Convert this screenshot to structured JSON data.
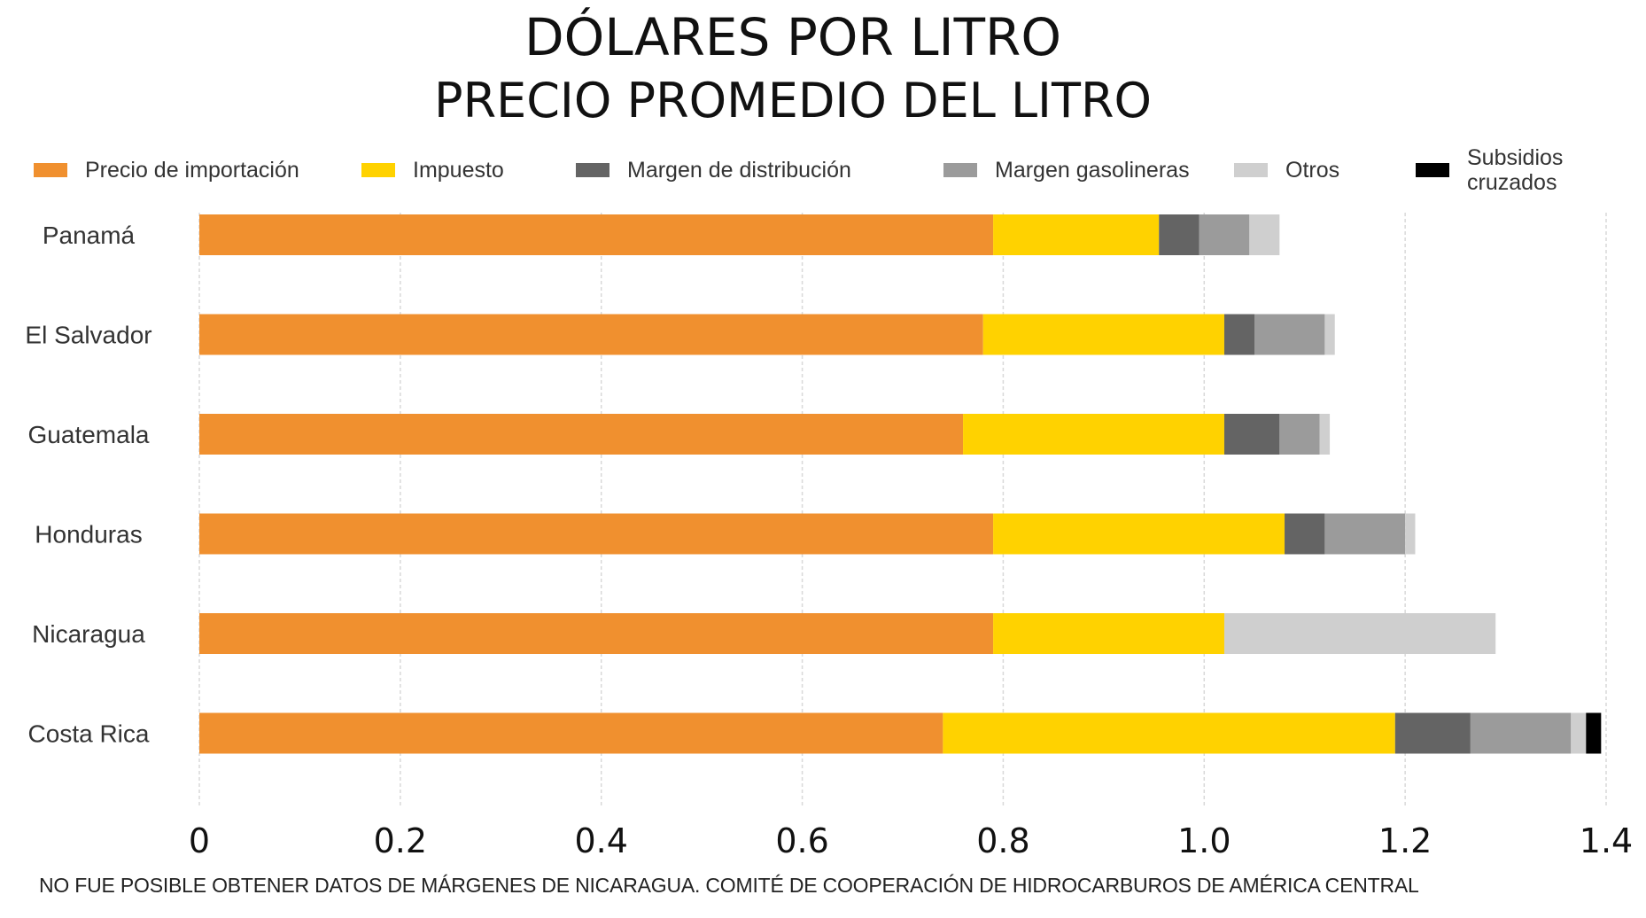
{
  "chart_data": {
    "type": "bar",
    "orientation": "horizontal",
    "stacked": true,
    "title": "DÓLARES POR LITRO",
    "subtitle": "PRECIO PROMEDIO DEL LITRO",
    "xlim": [
      0,
      1.4
    ],
    "x_ticks": [
      "0",
      "0.2",
      "0.4",
      "0.6",
      "0.8",
      "1.0",
      "1.2",
      "1.4"
    ],
    "categories": [
      "Panamá",
      "El Salvador",
      "Guatemala",
      "Honduras",
      "Nicaragua",
      "Costa Rica"
    ],
    "series": [
      {
        "name": "Precio de importación",
        "color": "#F0902F",
        "values": [
          0.79,
          0.78,
          0.76,
          0.79,
          0.79,
          0.74
        ]
      },
      {
        "name": "Impuesto",
        "color": "#FFD200",
        "values": [
          0.165,
          0.24,
          0.26,
          0.29,
          0.23,
          0.45
        ]
      },
      {
        "name": "Margen de distribución",
        "color": "#646464",
        "values": [
          0.04,
          0.03,
          0.055,
          0.04,
          0,
          0.075
        ]
      },
      {
        "name": "Margen gasolineras",
        "color": "#9B9B9B",
        "values": [
          0.05,
          0.07,
          0.04,
          0.08,
          0,
          0.1
        ]
      },
      {
        "name": "Otros",
        "color": "#CFCFCF",
        "values": [
          0.03,
          0.01,
          0.01,
          0.01,
          0.27,
          0.015
        ]
      },
      {
        "name": "Subsidios\ncruzados",
        "color": "#000000",
        "values": [
          0,
          0,
          0,
          0,
          0,
          0.015
        ]
      }
    ],
    "grid": true,
    "legend": "top",
    "xlabel": "",
    "ylabel": ""
  },
  "footnote": "NO FUE POSIBLE OBTENER DATOS DE MÁRGENES DE NICARAGUA. COMITÉ DE COOPERACIÓN DE HIDROCARBUROS DE AMÉRICA CENTRAL"
}
